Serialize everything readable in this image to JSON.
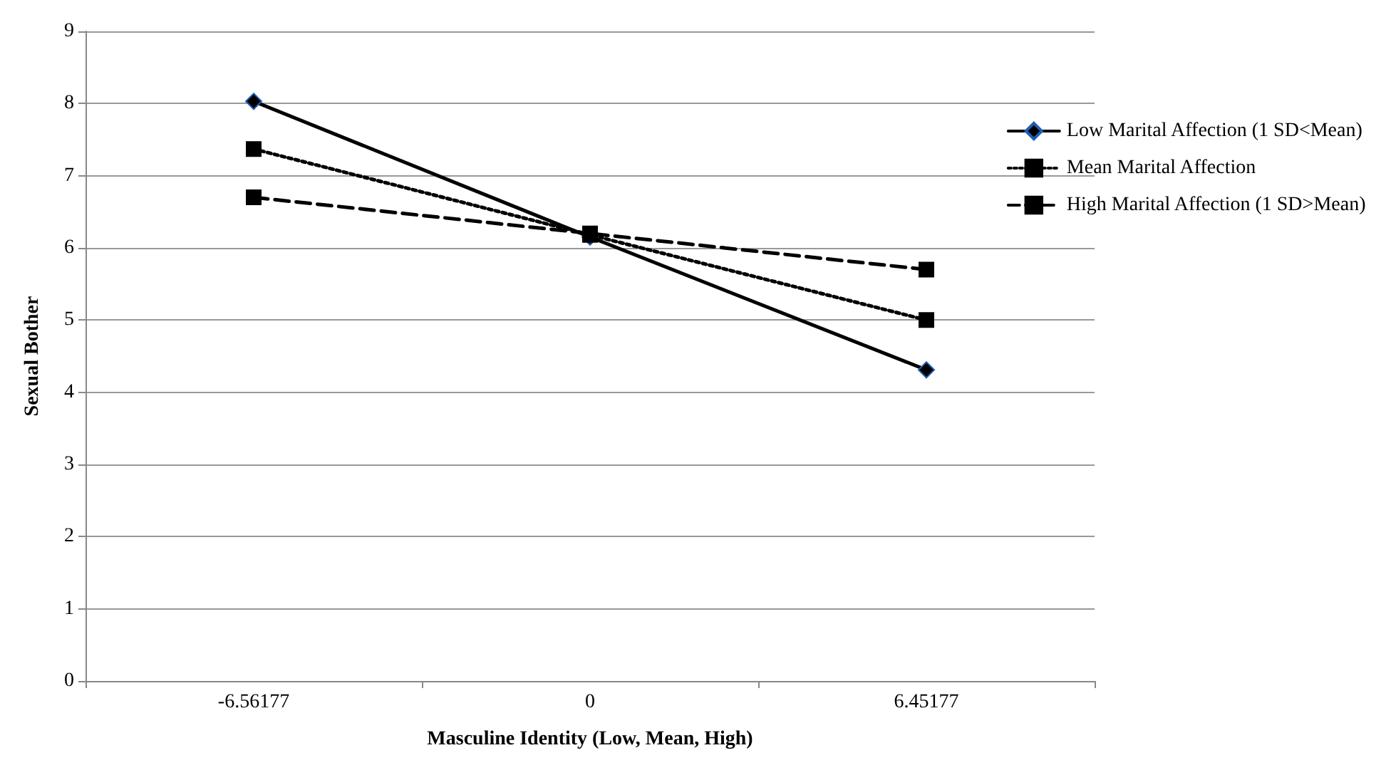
{
  "chart_data": {
    "type": "line",
    "xlabel": "Masculine Identity (Low, Mean, High)",
    "ylabel": "Sexual Bother",
    "categories": [
      "-6.56177",
      "0",
      "6.45177"
    ],
    "series": [
      {
        "name": "Low Marital Affection (1 SD<Mean)",
        "color": "#000000",
        "values": [
          8.03,
          6.15,
          4.31
        ],
        "marker": "diamond",
        "line_style": "solid"
      },
      {
        "name": "Mean Marital Affection",
        "color": "#000000",
        "values": [
          7.37,
          6.18,
          5.0
        ],
        "marker": "square",
        "line_style": "dotted"
      },
      {
        "name": "High Marital Affection (1 SD>Mean)",
        "color": "#000000",
        "values": [
          6.7,
          6.2,
          5.7
        ],
        "marker": "square",
        "line_style": "dashed"
      }
    ],
    "ylim": [
      0,
      9
    ],
    "yticks": [
      0,
      1,
      2,
      3,
      4,
      5,
      6,
      7,
      8,
      9
    ],
    "grid": "y",
    "legend": "right"
  }
}
